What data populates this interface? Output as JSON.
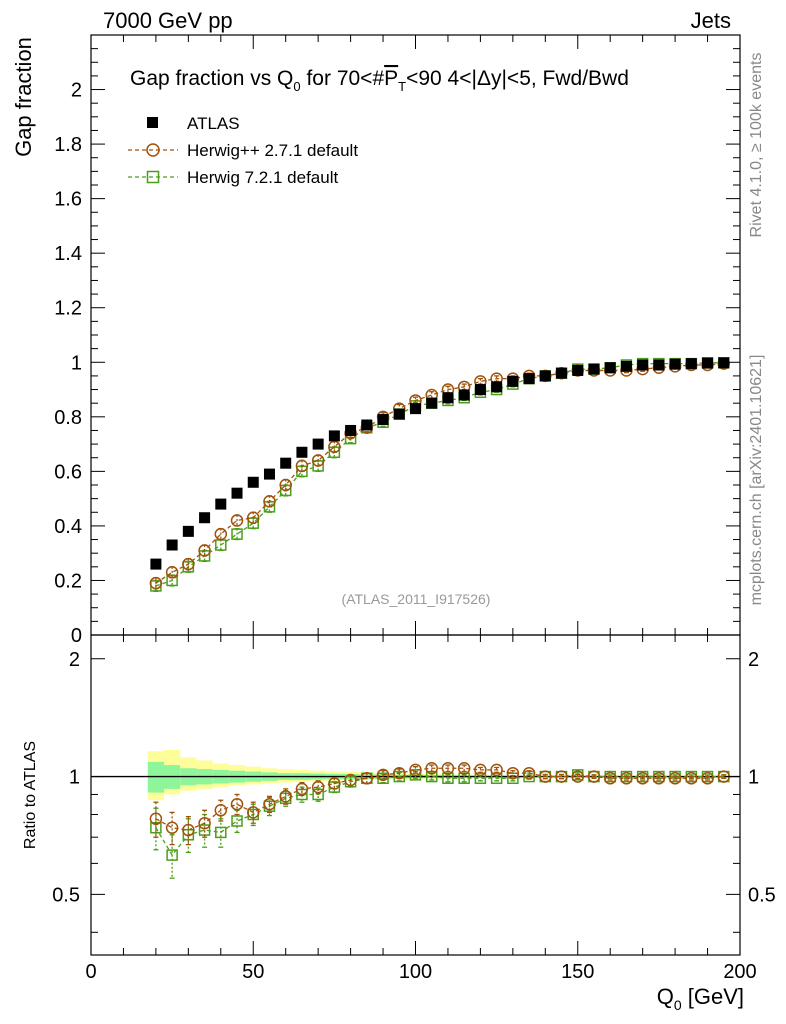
{
  "header": {
    "left": "7000 GeV pp",
    "right": "Jets"
  },
  "side_labels": {
    "rivet": "Rivet 4.1.0, ≥ 100k events",
    "mcplots": "mcplots.cern.ch [arXiv:2401.10621]"
  },
  "chart_data": {
    "type": "scatter",
    "title": "Gap fraction vs Q0 for 70<#PT<90  4<|Δy|<5, Fwd/Bwd",
    "title_parts": {
      "a": "Gap fraction vs Q",
      "sub": "0",
      "b": " for 70<#",
      "p": "P",
      "t": "T",
      "c": "<90  4<|Δy|<5, Fwd/Bwd"
    },
    "analysis_tag": "(ATLAS_2011_I917526)",
    "xlabel_main": "Q",
    "xlabel_sub": "0",
    "xlabel_unit": " [GeV]",
    "xlabel": "Q0 [GeV]",
    "ylabel": "Gap fraction",
    "ratio_ylabel": "Ratio to ATLAS",
    "xlim": [
      0,
      200
    ],
    "ylim": [
      0,
      2.2
    ],
    "ratio_ylim": [
      0.35,
      2.3
    ],
    "x_ticks": [
      "0",
      "50",
      "100",
      "150",
      "200"
    ],
    "y_ticks": [
      "0",
      "0.2",
      "0.4",
      "0.6",
      "0.8",
      "1",
      "1.2",
      "1.4",
      "1.6",
      "1.8",
      "2"
    ],
    "ratio_ticks": [
      "0.5",
      "1",
      "2"
    ],
    "legend": [
      "ATLAS",
      "Herwig++ 2.7.1 default",
      "Herwig 7.2.1 default"
    ],
    "colors": {
      "atlas": "#000000",
      "herwigpp": "#a0520a",
      "herwig7": "#4a9e1a",
      "band_inner": "#8ef59a",
      "band_outer": "#fdfd9a"
    },
    "x": [
      20,
      25,
      30,
      35,
      40,
      45,
      50,
      55,
      60,
      65,
      70,
      75,
      80,
      85,
      90,
      95,
      100,
      105,
      110,
      115,
      120,
      125,
      130,
      135,
      140,
      145,
      150,
      155,
      160,
      165,
      170,
      175,
      180,
      185,
      190,
      195
    ],
    "series": [
      {
        "name": "ATLAS",
        "values": [
          0.26,
          0.33,
          0.38,
          0.43,
          0.48,
          0.52,
          0.56,
          0.59,
          0.63,
          0.67,
          0.7,
          0.73,
          0.75,
          0.77,
          0.79,
          0.81,
          0.83,
          0.85,
          0.87,
          0.88,
          0.9,
          0.91,
          0.93,
          0.94,
          0.95,
          0.96,
          0.97,
          0.975,
          0.98,
          0.985,
          0.99,
          0.99,
          0.993,
          0.995,
          0.997,
          0.998
        ],
        "errors": [
          0.008,
          0.008,
          0.008,
          0.008,
          0.008,
          0.008,
          0.008,
          0.008,
          0.008,
          0.008,
          0.008,
          0.008,
          0.008,
          0.008,
          0.008,
          0.008,
          0.008,
          0.008,
          0.008,
          0.008,
          0.008,
          0.008,
          0.008,
          0.008,
          0.008,
          0.008,
          0.008,
          0.008,
          0.008,
          0.008,
          0.008,
          0.008,
          0.008,
          0.008,
          0.008,
          0.008
        ]
      },
      {
        "name": "Herwig++ 2.7.1 default",
        "values": [
          0.19,
          0.23,
          0.26,
          0.31,
          0.37,
          0.42,
          0.43,
          0.49,
          0.55,
          0.62,
          0.64,
          0.69,
          0.74,
          0.76,
          0.8,
          0.83,
          0.86,
          0.88,
          0.9,
          0.91,
          0.93,
          0.94,
          0.94,
          0.95,
          0.95,
          0.96,
          0.97,
          0.97,
          0.97,
          0.97,
          0.975,
          0.98,
          0.985,
          0.99,
          0.99,
          0.995
        ],
        "errors": [
          0.02,
          0.02,
          0.02,
          0.02,
          0.02,
          0.02,
          0.02,
          0.02,
          0.02,
          0.02,
          0.02,
          0.02,
          0.015,
          0.015,
          0.015,
          0.015,
          0.012,
          0.012,
          0.012,
          0.01,
          0.01,
          0.01,
          0.01,
          0.01,
          0.008,
          0.008,
          0.008,
          0.008,
          0.008,
          0.008,
          0.008,
          0.008,
          0.006,
          0.006,
          0.006,
          0.006
        ]
      },
      {
        "name": "Herwig 7.2.1 default",
        "values": [
          0.18,
          0.2,
          0.25,
          0.29,
          0.33,
          0.37,
          0.41,
          0.47,
          0.53,
          0.6,
          0.62,
          0.67,
          0.72,
          0.76,
          0.78,
          0.81,
          0.84,
          0.85,
          0.86,
          0.87,
          0.89,
          0.9,
          0.92,
          0.94,
          0.95,
          0.96,
          0.975,
          0.975,
          0.98,
          0.99,
          0.995,
          0.995,
          0.995,
          0.995,
          0.998,
          0.998
        ],
        "errors": [
          0.02,
          0.02,
          0.02,
          0.02,
          0.02,
          0.02,
          0.02,
          0.02,
          0.02,
          0.02,
          0.02,
          0.02,
          0.015,
          0.015,
          0.015,
          0.015,
          0.012,
          0.012,
          0.012,
          0.01,
          0.01,
          0.01,
          0.01,
          0.01,
          0.008,
          0.008,
          0.008,
          0.008,
          0.008,
          0.008,
          0.008,
          0.008,
          0.006,
          0.006,
          0.006,
          0.006
        ]
      }
    ],
    "ratio_series": [
      {
        "name": "Herwig++ 2.7.1 default",
        "values": [
          0.78,
          0.74,
          0.73,
          0.76,
          0.82,
          0.85,
          0.81,
          0.85,
          0.89,
          0.93,
          0.94,
          0.96,
          0.98,
          0.99,
          1.01,
          1.02,
          1.04,
          1.05,
          1.05,
          1.05,
          1.04,
          1.04,
          1.02,
          1.02,
          1.0,
          1.0,
          1.0,
          1.0,
          0.99,
          0.99,
          0.99,
          0.99,
          0.99,
          0.99,
          0.99,
          1.0
        ],
        "errors": [
          0.08,
          0.07,
          0.06,
          0.06,
          0.05,
          0.05,
          0.05,
          0.04,
          0.04,
          0.035,
          0.035,
          0.03,
          0.03,
          0.03,
          0.025,
          0.025,
          0.02,
          0.02,
          0.02,
          0.02,
          0.015,
          0.015,
          0.015,
          0.015,
          0.012,
          0.012,
          0.012,
          0.01,
          0.01,
          0.01,
          0.01,
          0.01,
          0.01,
          0.01,
          0.01,
          0.01
        ]
      },
      {
        "name": "Herwig 7.2.1 default",
        "values": [
          0.74,
          0.63,
          0.71,
          0.73,
          0.72,
          0.77,
          0.8,
          0.84,
          0.88,
          0.9,
          0.9,
          0.94,
          0.97,
          0.99,
          0.99,
          1.0,
          1.01,
          1.0,
          0.99,
          0.99,
          0.99,
          0.99,
          0.99,
          1.0,
          1.0,
          1.0,
          1.01,
          1.0,
          1.0,
          1.0,
          1.0,
          1.0,
          1.0,
          1.0,
          1.0,
          1.0
        ],
        "errors": [
          0.09,
          0.08,
          0.07,
          0.07,
          0.06,
          0.05,
          0.05,
          0.045,
          0.04,
          0.04,
          0.035,
          0.03,
          0.03,
          0.03,
          0.025,
          0.025,
          0.02,
          0.02,
          0.02,
          0.02,
          0.015,
          0.015,
          0.015,
          0.015,
          0.012,
          0.012,
          0.012,
          0.01,
          0.01,
          0.01,
          0.01,
          0.01,
          0.01,
          0.01,
          0.01,
          0.01
        ]
      }
    ],
    "ratio_band_x_edges": [
      17.5,
      22.5,
      27.5,
      32.5,
      37.5,
      42.5,
      47.5,
      52.5,
      57.5,
      62.5,
      67.5,
      72.5,
      77.5,
      82.5,
      87.5,
      92.5,
      97.5,
      102.5,
      107.5,
      112.5,
      117.5,
      122.5,
      127.5,
      132.5,
      137.5,
      142.5,
      147.5,
      152.5,
      157.5,
      162.5,
      167.5,
      172.5,
      177.5,
      182.5,
      187.5,
      192.5,
      197.5
    ],
    "ratio_band_inner": [
      0.09,
      0.07,
      0.05,
      0.045,
      0.04,
      0.035,
      0.03,
      0.025,
      0.02,
      0.02,
      0.018,
      0.016,
      0.015,
      0.013,
      0.012,
      0.011,
      0.01,
      0.009,
      0.008,
      0.007,
      0.006,
      0.006,
      0.005,
      0.005,
      0.004,
      0.004,
      0.004,
      0.003,
      0.003,
      0.003,
      0.003,
      0.002,
      0.002,
      0.002,
      0.002,
      0.002
    ],
    "ratio_band_outer_up": [
      0.16,
      0.17,
      0.12,
      0.1,
      0.08,
      0.07,
      0.06,
      0.05,
      0.045,
      0.04,
      0.035,
      0.03,
      0.028,
      0.025,
      0.022,
      0.02,
      0.018,
      0.016,
      0.014,
      0.012,
      0.011,
      0.01,
      0.009,
      0.008,
      0.007,
      0.006,
      0.006,
      0.005,
      0.005,
      0.004,
      0.004,
      0.004,
      0.003,
      0.003,
      0.003,
      0.003
    ],
    "ratio_band_outer_dn": [
      0.13,
      0.1,
      0.08,
      0.07,
      0.06,
      0.05,
      0.045,
      0.04,
      0.035,
      0.03,
      0.028,
      0.025,
      0.022,
      0.02,
      0.018,
      0.016,
      0.014,
      0.012,
      0.011,
      0.01,
      0.009,
      0.008,
      0.007,
      0.006,
      0.006,
      0.005,
      0.005,
      0.004,
      0.004,
      0.004,
      0.003,
      0.003,
      0.003,
      0.003,
      0.003,
      0.003
    ]
  }
}
